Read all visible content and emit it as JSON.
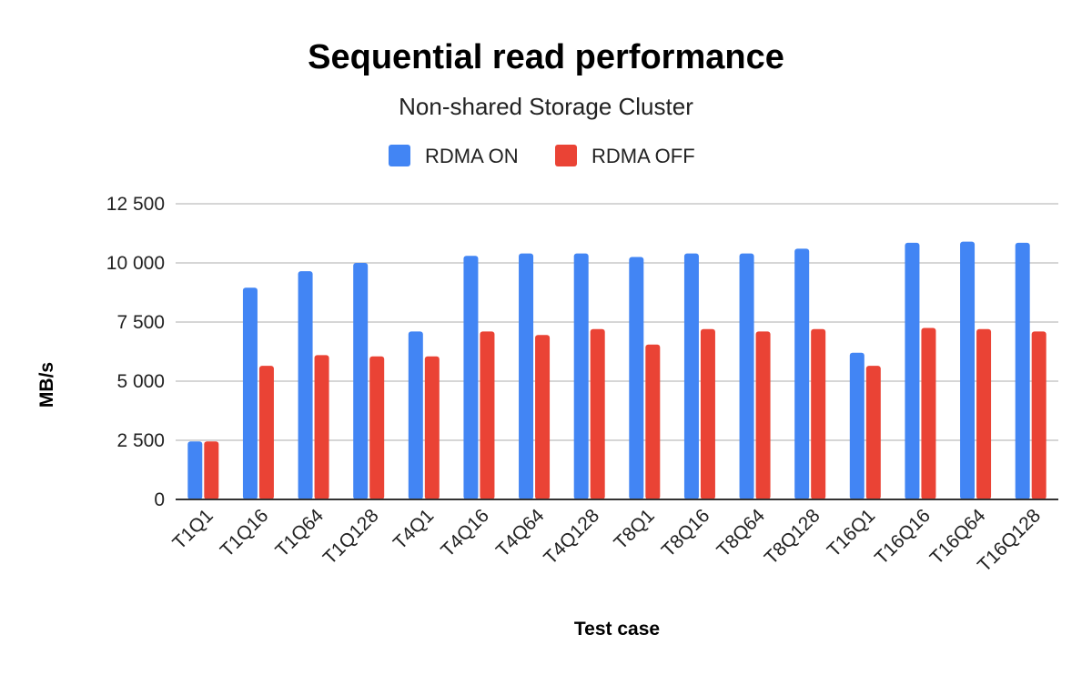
{
  "chart_data": {
    "type": "bar",
    "title": "Sequential read performance",
    "subtitle": "Non-shared Storage Cluster",
    "xlabel": "Test case",
    "ylabel": "MB/s",
    "ylim": [
      0,
      12500
    ],
    "yticks": [
      0,
      2500,
      5000,
      7500,
      10000,
      12500
    ],
    "ytick_labels": [
      "0",
      "2 500",
      "5 000",
      "7 500",
      "10 000",
      "12 500"
    ],
    "grid": true,
    "legend_position": "top",
    "categories": [
      "T1Q1",
      "T1Q16",
      "T1Q64",
      "T1Q128",
      "T4Q1",
      "T4Q16",
      "T4Q64",
      "T4Q128",
      "T8Q1",
      "T8Q16",
      "T8Q64",
      "T8Q128",
      "T16Q1",
      "T16Q16",
      "T16Q64",
      "T16Q128"
    ],
    "series": [
      {
        "name": "RDMA ON",
        "color": "#4285f4",
        "values": [
          2450,
          8950,
          9650,
          10000,
          7100,
          10300,
          10400,
          10400,
          10250,
          10400,
          10400,
          10600,
          6200,
          10850,
          10900,
          10850
        ]
      },
      {
        "name": "RDMA OFF",
        "color": "#ea4335",
        "values": [
          2450,
          5650,
          6100,
          6050,
          6050,
          7100,
          6950,
          7200,
          6550,
          7200,
          7100,
          7200,
          5650,
          7250,
          7200,
          7100
        ]
      }
    ]
  }
}
